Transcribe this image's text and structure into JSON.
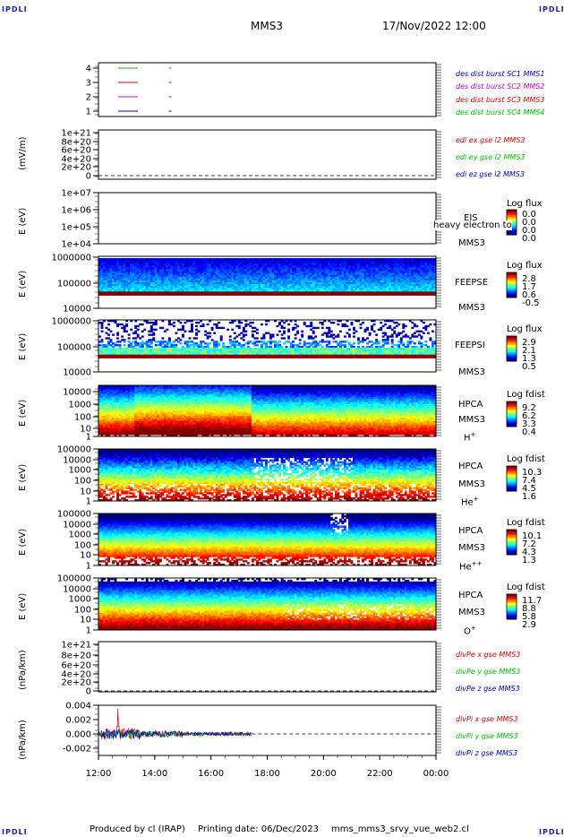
{
  "header": {
    "corner_label": "IPDLI",
    "spacecraft": "MMS3",
    "datetime": "17/Nov/2022 12:00"
  },
  "footer": {
    "produced_by": "Produced by cl (IRAP)",
    "printing_date": "Printing date: 06/Dec/2023",
    "script_name": "mms_mms3_srvy_vue_web2.cl"
  },
  "x_axis": {
    "ticks": [
      "12:00",
      "14:00",
      "16:00",
      "18:00",
      "20:00",
      "22:00",
      "00:00"
    ],
    "range_hours": [
      12,
      24
    ]
  },
  "colors": {
    "red": "#e00000",
    "green": "#00c000",
    "blue": "#0000c0",
    "magenta": "#d000d0"
  },
  "panels": [
    {
      "id": "burst",
      "ylabel": "",
      "yticks": [
        "4",
        "3",
        "2",
        "1"
      ],
      "legend": [
        {
          "text": "des dist burst SC1 MMS1",
          "color": "#0000c0"
        },
        {
          "text": "des dist burst SC2 MMS2",
          "color": "#d000d0"
        },
        {
          "text": "des dist burst SC3 MMS3",
          "color": "#e00000"
        },
        {
          "text": "des dist burst SC4 MMS4",
          "color": "#00c000"
        }
      ]
    },
    {
      "id": "edi",
      "ylabel": "(mV/m)",
      "yticks": [
        "1e+21",
        "8e+20",
        "6e+20",
        "4e+20",
        "2e+20",
        "0"
      ],
      "legend": [
        {
          "text": "edi ex gse l2 MMS3",
          "color": "#e00000"
        },
        {
          "text": "edi ey gse l2 MMS3",
          "color": "#00c000"
        },
        {
          "text": "edi ez gse l2 MMS3",
          "color": "#0000c0"
        }
      ]
    },
    {
      "id": "eis",
      "ylabel": "E (eV)",
      "yticks": [
        "1e+07",
        "1e+06",
        "1e+05",
        "1e+04"
      ],
      "labels": [
        "EIS",
        "MMS3"
      ],
      "overlay": "heavy electron to",
      "cb_title": "Log flux",
      "cb_values": [
        "0.0",
        "0.0",
        "0.0",
        "0.0"
      ]
    },
    {
      "id": "feepse",
      "ylabel": "E (eV)",
      "yticks": [
        "1000000",
        "100000",
        "10000"
      ],
      "labels": [
        "FEEPSE",
        "MMS3"
      ],
      "cb_title": "Log flux",
      "cb_values": [
        "2.8",
        "1.7",
        "0.6",
        "-0.5"
      ]
    },
    {
      "id": "feepsi",
      "ylabel": "E (eV)",
      "yticks": [
        "1000000",
        "100000",
        "10000"
      ],
      "labels": [
        "FEEPSI",
        "MMS3"
      ],
      "cb_title": "Log flux",
      "cb_values": [
        "2.9",
        "2.1",
        "1.3",
        "0.5"
      ]
    },
    {
      "id": "hpca-h",
      "ylabel": "E (eV)",
      "yticks": [
        "10000",
        "1000",
        "100",
        "10",
        "1"
      ],
      "labels": [
        "HPCA",
        "MMS3"
      ],
      "ion": "H",
      "ion_charge": "+",
      "cb_title": "Log fdist",
      "cb_values": [
        "9.2",
        "6.2",
        "3.3",
        "0.4"
      ]
    },
    {
      "id": "hpca-he",
      "ylabel": "E (eV)",
      "yticks": [
        "100000",
        "10000",
        "1000",
        "100",
        "10",
        "1"
      ],
      "labels": [
        "HPCA",
        "MMS3"
      ],
      "ion": "He",
      "ion_charge": "+",
      "cb_title": "Log fdist",
      "cb_values": [
        "10.3",
        "7.4",
        "4.5",
        "1.6"
      ]
    },
    {
      "id": "hpca-he2",
      "ylabel": "E (eV)",
      "yticks": [
        "100000",
        "10000",
        "1000",
        "100",
        "10",
        "1"
      ],
      "labels": [
        "HPCA",
        "MMS3"
      ],
      "ion": "He",
      "ion_charge": "++",
      "cb_title": "Log fdist",
      "cb_values": [
        "10.1",
        "7.2",
        "4.3",
        "1.3"
      ]
    },
    {
      "id": "hpca-o",
      "ylabel": "E (eV)",
      "yticks": [
        "100000",
        "10000",
        "1000",
        "100",
        "10",
        "1"
      ],
      "labels": [
        "HPCA",
        "MMS3"
      ],
      "ion": "O",
      "ion_charge": "+",
      "cb_title": "Log fdist",
      "cb_values": [
        "11.7",
        "8.8",
        "5.8",
        "2.9"
      ]
    },
    {
      "id": "divpe",
      "ylabel": "(nPa/km)",
      "yticks": [
        "1e+21",
        "8e+20",
        "6e+20",
        "4e+20",
        "2e+20",
        "0"
      ],
      "legend": [
        {
          "text": "divPe x gse MMS3",
          "color": "#e00000"
        },
        {
          "text": "divPe y gse MMS3",
          "color": "#00c000"
        },
        {
          "text": "divPe z gse MMS3",
          "color": "#0000c0"
        }
      ]
    },
    {
      "id": "divpi",
      "ylabel": "(nPa/km)",
      "yticks": [
        "0.004",
        "0.002",
        "0.000",
        "-0.002"
      ],
      "legend": [
        {
          "text": "divPi x gse MMS3",
          "color": "#e00000"
        },
        {
          "text": "divPi y gse MMS3",
          "color": "#00c000"
        },
        {
          "text": "divPi z gse MMS3",
          "color": "#0000c0"
        }
      ]
    }
  ],
  "chart_data": [
    {
      "type": "line",
      "panel": "burst",
      "xlabel": "",
      "ylabel": "",
      "ylim": [
        0.5,
        4.5
      ],
      "series": [
        {
          "name": "des dist burst SC1 MMS1",
          "intervals_hours": [
            [
              12.7,
              13.4
            ],
            [
              14.5,
              14.6
            ]
          ],
          "value": 1
        },
        {
          "name": "des dist burst SC2 MMS2",
          "intervals_hours": [
            [
              12.7,
              13.4
            ],
            [
              14.5,
              14.6
            ]
          ],
          "value": 2
        },
        {
          "name": "des dist burst SC3 MMS3",
          "intervals_hours": [
            [
              12.7,
              13.4
            ],
            [
              14.5,
              14.6
            ]
          ],
          "value": 3
        },
        {
          "name": "des dist burst SC4 MMS4",
          "intervals_hours": [
            [
              12.7,
              13.4
            ],
            [
              14.5,
              14.6
            ]
          ],
          "value": 4
        }
      ]
    },
    {
      "type": "line",
      "panel": "edi",
      "ylabel": "(mV/m)",
      "ylim": [
        -1e+20,
        1.1e+21
      ],
      "series": [],
      "zero_line": true
    },
    {
      "type": "heatmap",
      "panel": "eis",
      "ylabel": "E (eV)",
      "log_y": true,
      "ylim": [
        10000,
        10000000
      ],
      "values": "empty"
    },
    {
      "type": "heatmap",
      "panel": "feepse",
      "ylabel": "E (eV)",
      "log_y": true,
      "ylim": [
        10000,
        1000000
      ],
      "clim": [
        -0.5,
        2.8
      ],
      "band_top_log": 6.0,
      "band_low_log": 4.55
    },
    {
      "type": "heatmap",
      "panel": "feepsi",
      "ylabel": "E (eV)",
      "log_y": true,
      "ylim": [
        10000,
        1000000
      ],
      "clim": [
        0.5,
        2.9
      ],
      "band_top_log": 5.55,
      "band_low_log": 4.8
    },
    {
      "type": "heatmap",
      "panel": "hpca-h",
      "ylabel": "E (eV)",
      "log_y": true,
      "ylim": [
        1,
        30000
      ],
      "clim": [
        0.4,
        9.2
      ]
    },
    {
      "type": "heatmap",
      "panel": "hpca-he",
      "ylabel": "E (eV)",
      "log_y": true,
      "ylim": [
        1,
        100000
      ],
      "clim": [
        1.6,
        10.3
      ]
    },
    {
      "type": "heatmap",
      "panel": "hpca-he2",
      "ylabel": "E (eV)",
      "log_y": true,
      "ylim": [
        1,
        100000
      ],
      "clim": [
        1.3,
        10.1
      ]
    },
    {
      "type": "heatmap",
      "panel": "hpca-o",
      "ylabel": "E (eV)",
      "log_y": true,
      "ylim": [
        1,
        100000
      ],
      "clim": [
        2.9,
        11.7
      ]
    },
    {
      "type": "line",
      "panel": "divpe",
      "ylabel": "(nPa/km)",
      "ylim": [
        -1e+20,
        1.1e+21
      ],
      "series": [],
      "zero_line": true
    },
    {
      "type": "line",
      "panel": "divpi",
      "ylabel": "(nPa/km)",
      "ylim": [
        -0.003,
        0.004
      ],
      "x_end_hours": 17.45,
      "zero_line": true,
      "series": [
        {
          "name": "divPi x gse MMS3",
          "noise_amplitude": 0.0008,
          "spike_max": 0.0035
        },
        {
          "name": "divPi y gse MMS3",
          "noise_amplitude": 0.0006
        },
        {
          "name": "divPi z gse MMS3",
          "noise_amplitude": 0.0007
        }
      ]
    }
  ]
}
